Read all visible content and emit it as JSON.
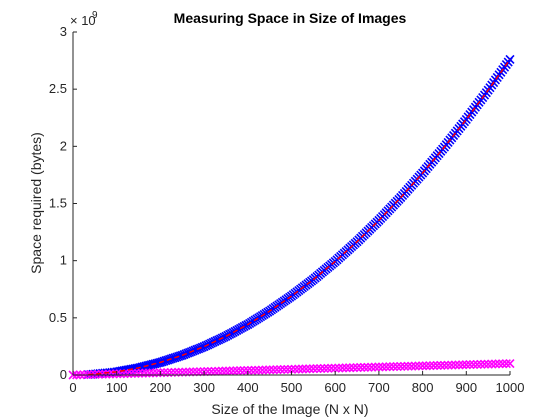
{
  "chart_data": {
    "type": "scatter",
    "title": "Measuring Space in Size of Images",
    "xlabel": "Size of the Image (N x N)",
    "ylabel": "Space required (bytes)",
    "xlim": [
      0,
      1000
    ],
    "ylim": [
      0,
      3000000000
    ],
    "x_ticks": [
      "0",
      "100",
      "200",
      "300",
      "400",
      "500",
      "600",
      "700",
      "800",
      "900",
      "1000"
    ],
    "y_ticks": [
      "0",
      "0.5",
      "1",
      "1.5",
      "2",
      "2.5",
      "3"
    ],
    "y_exponent_base": "× 10",
    "y_exponent_power": "9",
    "grid": false,
    "box": "open",
    "series": [
      {
        "marker": "x",
        "color": "#0000ff",
        "x": [
          35,
          100,
          150,
          200,
          250,
          300,
          350,
          400,
          450,
          500,
          550,
          600,
          650,
          700,
          750,
          800,
          850,
          900,
          950,
          1000
        ],
        "y": [
          3400000,
          27600000,
          62100000,
          110400000,
          172500000,
          248400000,
          338100000,
          441600000,
          558900000,
          690000000,
          834900000,
          993600000,
          1166100000,
          1352400000,
          1552500000,
          1766400000,
          1994100000,
          2235600000,
          2490900000,
          2760000000
        ]
      },
      {
        "marker": "line",
        "color": "#ff0000",
        "x": [
          35,
          100,
          150,
          200,
          250,
          300,
          350,
          400,
          450,
          500,
          550,
          600,
          650,
          700,
          750,
          800,
          850,
          900,
          950,
          1000
        ],
        "y": [
          3400000,
          27600000,
          62100000,
          110400000,
          172500000,
          248400000,
          338100000,
          441600000,
          558900000,
          690000000,
          834900000,
          993600000,
          1166100000,
          1352400000,
          1552500000,
          1766400000,
          1994100000,
          2235600000,
          2490900000,
          2760000000
        ]
      },
      {
        "marker": "x",
        "color": "#ff00ff",
        "x": [
          0,
          100,
          200,
          300,
          400,
          500,
          600,
          700,
          800,
          900,
          1000
        ],
        "y": [
          0,
          10000000,
          20000000,
          30000000,
          40000000,
          50000000,
          60000000,
          70000000,
          80000000,
          90000000,
          100000000
        ]
      }
    ]
  }
}
